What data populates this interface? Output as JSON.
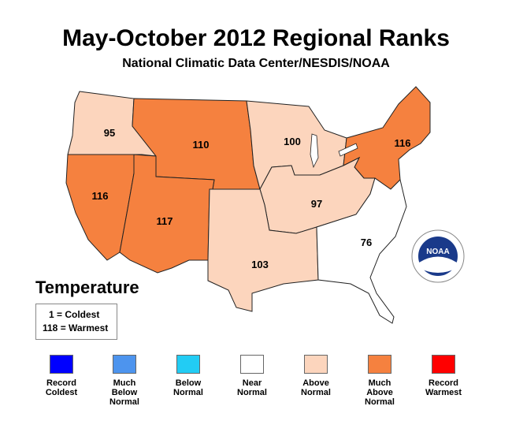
{
  "title": "May-October 2012 Regional Ranks",
  "subtitle": "National Climatic Data Center/NESDIS/NOAA",
  "logo_text": "NOAA",
  "legend": {
    "heading": "Temperature",
    "scale_min": "1 = Coldest",
    "scale_max": "118 = Warmest",
    "categories": [
      {
        "label": "Record\nColdest",
        "color": "#0000ff"
      },
      {
        "label": "Much\nBelow\nNormal",
        "color": "#4d94ee"
      },
      {
        "label": "Below\nNormal",
        "color": "#22ccf4"
      },
      {
        "label": "Near\nNormal",
        "color": "#ffffff"
      },
      {
        "label": "Above\nNormal",
        "color": "#fcd5bd"
      },
      {
        "label": "Much\nAbove\nNormal",
        "color": "#f5813f"
      },
      {
        "label": "Record\nWarmest",
        "color": "#ff0000"
      }
    ]
  },
  "regions": [
    {
      "name": "Northwest",
      "rank": "95",
      "category": "Above Normal"
    },
    {
      "name": "West North Central",
      "rank": "110",
      "category": "Much Above Normal"
    },
    {
      "name": "East North Central",
      "rank": "100",
      "category": "Above Normal"
    },
    {
      "name": "Northeast",
      "rank": "116",
      "category": "Much Above Normal"
    },
    {
      "name": "West",
      "rank": "116",
      "category": "Much Above Normal"
    },
    {
      "name": "Southwest",
      "rank": "117",
      "category": "Much Above Normal"
    },
    {
      "name": "Central",
      "rank": "97",
      "category": "Above Normal"
    },
    {
      "name": "South",
      "rank": "103",
      "category": "Above Normal"
    },
    {
      "name": "Southeast",
      "rank": "76",
      "category": "Near Normal"
    }
  ]
}
